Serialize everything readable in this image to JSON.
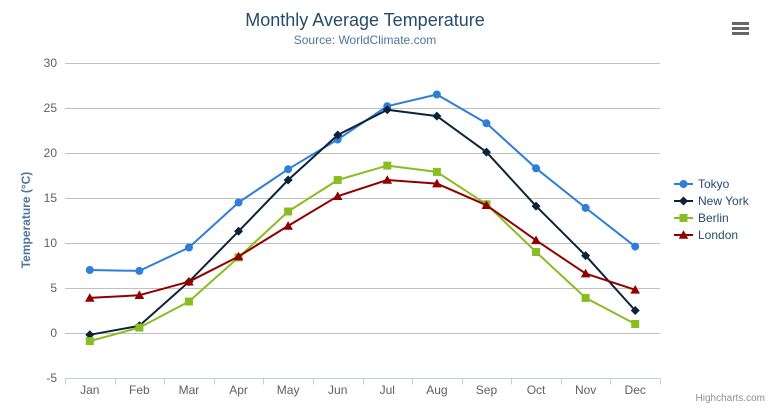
{
  "chart_data": {
    "type": "line",
    "title": "Monthly Average Temperature",
    "subtitle": "Source: WorldClimate.com",
    "xlabel": "",
    "ylabel": "Temperature (°C)",
    "categories": [
      "Jan",
      "Feb",
      "Mar",
      "Apr",
      "May",
      "Jun",
      "Jul",
      "Aug",
      "Sep",
      "Oct",
      "Nov",
      "Dec"
    ],
    "series": [
      {
        "name": "Tokyo",
        "color": "#2f7ed8",
        "marker": "circle",
        "values": [
          7.0,
          6.9,
          9.5,
          14.5,
          18.2,
          21.5,
          25.2,
          26.5,
          23.3,
          18.3,
          13.9,
          9.6
        ]
      },
      {
        "name": "New York",
        "color": "#0d233a",
        "marker": "diamond",
        "values": [
          -0.2,
          0.8,
          5.7,
          11.3,
          17.0,
          22.0,
          24.8,
          24.1,
          20.1,
          14.1,
          8.6,
          2.5
        ]
      },
      {
        "name": "Berlin",
        "color": "#8bbc21",
        "marker": "square",
        "values": [
          -0.9,
          0.6,
          3.5,
          8.4,
          13.5,
          17.0,
          18.6,
          17.9,
          14.3,
          9.0,
          3.9,
          1.0
        ]
      },
      {
        "name": "London",
        "color": "#910000",
        "marker": "triangle",
        "values": [
          3.9,
          4.2,
          5.7,
          8.5,
          11.9,
          15.2,
          17.0,
          16.6,
          14.2,
          10.3,
          6.6,
          4.8
        ]
      }
    ],
    "ylim": [
      -5,
      30
    ],
    "ytick_interval": 5,
    "grid": true,
    "legend_position": "right"
  },
  "credit": {
    "label": "Highcharts.com"
  },
  "export_menu": {
    "icon": "hamburger"
  },
  "theme": {
    "title_color": "#274b6d",
    "subtitle_color": "#4d759e",
    "axis_title_color": "#4d759e",
    "label_color": "#606060",
    "grid_color": "#c0c0c0",
    "axis_line_color": "#c0d0e0",
    "legend_text_color": "#274b6d",
    "credit_color": "#909090",
    "background": "#ffffff"
  }
}
